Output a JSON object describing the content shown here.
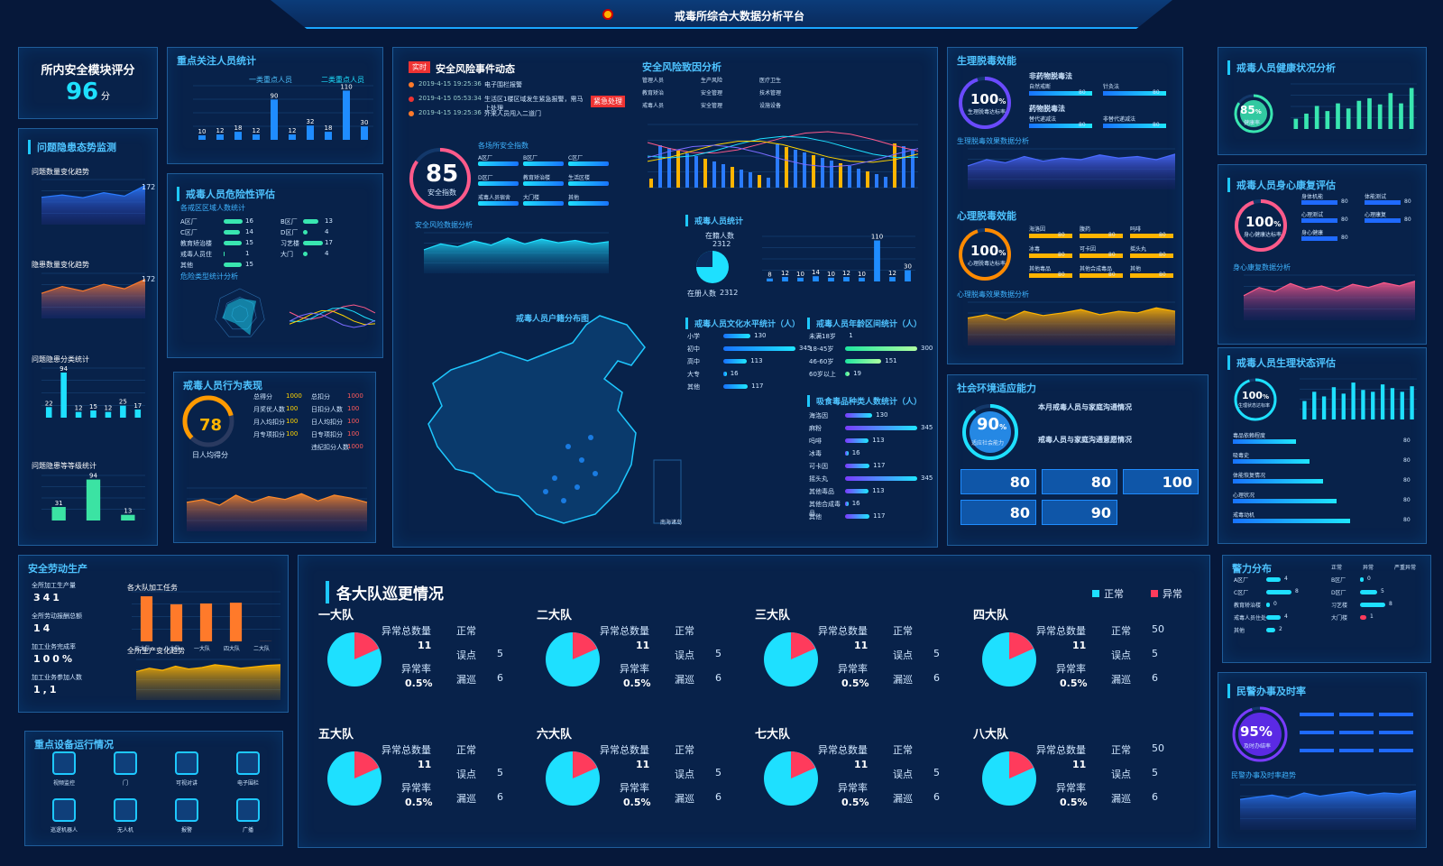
{
  "header": {
    "title": "戒毒所综合大数据分析平台"
  },
  "safety_score": {
    "title": "所内安全模块评分",
    "value": "96",
    "unit": "分"
  },
  "hazard_monitor": {
    "title": "问题隐患态势监测",
    "c1": {
      "title": "问题数量变化趋势",
      "peak": "172",
      "months": [
        "1月",
        "2月",
        "3月",
        "4月",
        "5月",
        "6月"
      ],
      "values": [
        120,
        130,
        118,
        140,
        125,
        172
      ]
    },
    "c2": {
      "title": "隐患数量变化趋势",
      "peak": "172",
      "months": [
        "1月",
        "2月",
        "3月",
        "4月",
        "5月",
        "6月"
      ],
      "values": [
        110,
        140,
        120,
        150,
        130,
        172
      ]
    },
    "c3": {
      "title": "问题隐患分类统计",
      "values": [
        22,
        94,
        12,
        15,
        12,
        25,
        17
      ]
    },
    "c4": {
      "title": "问题隐患等等级统计",
      "categories": [
        "一级",
        "二级",
        "三级"
      ],
      "values": [
        31,
        94,
        13
      ]
    }
  },
  "focus": {
    "title": "重点关注人员统计",
    "legend": [
      "一类重点人员",
      "二类重点人员"
    ],
    "values": [
      10,
      12,
      18,
      12,
      90,
      12,
      32,
      18,
      110,
      30
    ],
    "cats": [
      "自伤自残",
      "暴力倾向",
      "逃跑倾向",
      "打架",
      "精神",
      "吸毒",
      "危险倾向",
      "严重违纪",
      "艾滋病",
      "重点人员"
    ]
  },
  "risk": {
    "title": "戒毒人员危险性评估",
    "sub": "各戒区区域人数统计",
    "left": [
      {
        "k": "A区厂",
        "v": "16"
      },
      {
        "k": "C区厂",
        "v": "14"
      },
      {
        "k": "教育矫治楼",
        "v": "15"
      },
      {
        "k": "戒毒人员住",
        "v": "1"
      },
      {
        "k": "其他",
        "v": "15"
      }
    ],
    "right": [
      {
        "k": "B区厂",
        "v": "13"
      },
      {
        "k": "D区厂",
        "v": "4"
      },
      {
        "k": "习艺楼",
        "v": "17"
      },
      {
        "k": "大门",
        "v": "4"
      }
    ],
    "sub2": "危险类型统计分析",
    "radar": [
      "脱逃",
      "暴力袭警",
      "自杀自残",
      "打架",
      "行凶",
      "吸毒",
      "危险倾向"
    ],
    "months": [
      "1月",
      "2月",
      "3月"
    ]
  },
  "behavior": {
    "title": "戒毒人员行为表现",
    "gauge": "78",
    "gauge_label": "日人均得分",
    "rows": [
      {
        "k": "总得分",
        "v": "1000"
      },
      {
        "k": "月奖优人数",
        "v": "100"
      },
      {
        "k": "月入均扣分",
        "v": "100"
      },
      {
        "k": "月专项扣分",
        "v": "100"
      }
    ],
    "rows2": [
      {
        "k": "总扣分",
        "v": "1000"
      },
      {
        "k": "日扣分人数",
        "v": "100"
      },
      {
        "k": "日人均扣分",
        "v": "100"
      },
      {
        "k": "日专项扣分",
        "v": "100"
      },
      {
        "k": "违纪扣分人数",
        "v": "1000"
      }
    ],
    "months": [
      "1月",
      "2月",
      "3月",
      "4月",
      "5月",
      "6月",
      "7月",
      "8月",
      "9月",
      "10月",
      "11月",
      "12月"
    ]
  },
  "events": {
    "title": "安全风险事件动态",
    "badge": "实时",
    "items": [
      {
        "t": "2019-4-15 19:25:36",
        "d": "电子围栏报警"
      },
      {
        "t": "2019-4-15 05:53:34",
        "d": "生活区1楼区域发生紧急报警，需马上处理"
      },
      {
        "t": "2019-4-15 19:25:36",
        "d": "外来人员闯入二道门"
      }
    ],
    "tag": "紧急处理",
    "score": "85",
    "score_label": "安全指数",
    "sub": "各场所安全指数",
    "places": [
      "A区厂",
      "B区厂",
      "C区厂",
      "D区厂",
      "教育矫治楼",
      "生活区楼",
      "戒毒人员宿舍",
      "大门楼",
      "其他"
    ],
    "sub2": "安全风险数据分析",
    "months": [
      "1月",
      "2月",
      "3月",
      "4月",
      "5月",
      "6月",
      "7月",
      "8月",
      "9月",
      "10月",
      "11月",
      "12月"
    ]
  },
  "risk_cause": {
    "title": "安全风险致因分析",
    "legend": [
      "管理人员",
      "生产风险",
      "医疗卫生",
      "教育矫治",
      "安全管理",
      "技术管理",
      "戒毒人员",
      "安全管理",
      "设施设备"
    ],
    "months": [
      "1月",
      "2月",
      "3月",
      "4月",
      "5月",
      "6月"
    ]
  },
  "personnel": {
    "title": "戒毒人员统计",
    "total_label": "在籍人数",
    "total": "2312",
    "total2_label": "在册人数",
    "total2": "2312",
    "values": [
      8,
      12,
      10,
      14,
      10,
      12,
      10,
      110,
      12,
      30
    ]
  },
  "edu": {
    "title": "戒毒人员文化水平统计（人）",
    "rows": [
      {
        "k": "小学",
        "v": "130"
      },
      {
        "k": "初中",
        "v": "345"
      },
      {
        "k": "高中",
        "v": "113"
      },
      {
        "k": "大专",
        "v": "16"
      },
      {
        "k": "其他",
        "v": "117"
      }
    ]
  },
  "age": {
    "title": "戒毒人员年龄区间统计（人）",
    "rows": [
      {
        "k": "未满18岁",
        "v": "1"
      },
      {
        "k": "18-45岁",
        "v": "300"
      },
      {
        "k": "46-60岁",
        "v": "151"
      },
      {
        "k": "60岁以上",
        "v": "19"
      }
    ]
  },
  "drug": {
    "title": "吸食毒品种类人数统计（人）",
    "rows": [
      {
        "k": "海洛因",
        "v": "130"
      },
      {
        "k": "麻粉",
        "v": "345"
      },
      {
        "k": "吗啡",
        "v": "113"
      },
      {
        "k": "冰毒",
        "v": "16"
      },
      {
        "k": "可卡因",
        "v": "117"
      },
      {
        "k": "摇头丸",
        "v": "345"
      },
      {
        "k": "其他毒品",
        "v": "113"
      },
      {
        "k": "其他合成毒品",
        "v": "16"
      },
      {
        "k": "其他",
        "v": "117"
      }
    ]
  },
  "map": {
    "title": "戒毒人员户籍分布图",
    "inset": "南海诸岛"
  },
  "physio": {
    "title": "生理脱毒效能",
    "value": "100",
    "unit": "%",
    "label": "生理脱毒达标率",
    "sub1": "非药物脱毒法",
    "sub2": "药物脱毒法",
    "row": [
      "自然戒断",
      "针灸法",
      "替代递减法",
      "非替代递减法"
    ],
    "n": "80",
    "chart": "生理脱毒效果数据分析",
    "months": [
      "1月",
      "2月",
      "3月",
      "4月",
      "5月",
      "6月",
      "7月",
      "8月",
      "9月",
      "10月",
      "11月",
      "12月"
    ]
  },
  "psy": {
    "title": "心理脱毒效能",
    "value": "100",
    "unit": "%",
    "label": "心理脱毒达标率",
    "items": [
      "海洛因",
      "腹药",
      "吗啡",
      "冰毒",
      "可卡因",
      "摇头丸",
      "其他毒品",
      "其他合成毒品",
      "其他"
    ],
    "n": "80",
    "chart": "心理脱毒效果数据分析"
  },
  "health": {
    "title": "戒毒人员健康状况分析",
    "value": "85",
    "unit": "%",
    "label": "健康率",
    "values": [
      20,
      30,
      45,
      35,
      50,
      40,
      55,
      60,
      48,
      70,
      50,
      80
    ]
  },
  "rehab": {
    "title": "戒毒人员身心康复评估",
    "value": "100",
    "unit": "%",
    "label": "身心健康达标率",
    "items": [
      "身体机能",
      "体能测试",
      "心理测试",
      "心理康复",
      "身心健康"
    ],
    "n": "80",
    "chart": "身心康复数据分析"
  },
  "physio_eval": {
    "title": "戒毒人员生理状态评估",
    "value": "100",
    "unit": "%",
    "label": "生理状态达标率",
    "rows": [
      "毒品依赖程度",
      "吸毒史",
      "体能恢复情况",
      "心理状况",
      "戒毒动机"
    ],
    "n": "80"
  },
  "social": {
    "title": "社会环境适应能力",
    "value": "90",
    "unit": "%",
    "label": "适应社会能力",
    "sub1": "本月戒毒人员与家庭沟通情况",
    "sub2": "戒毒人员与家庭沟通意愿情况",
    "tiles": [
      "80",
      "80",
      "100",
      "80",
      "90"
    ],
    "n": "100"
  },
  "production": {
    "title": "安全劳动生产",
    "stats": [
      {
        "k": "全所加工生产量",
        "v": "341"
      },
      {
        "k": "全所劳动报酬总额",
        "v": "14"
      },
      {
        "k": "加工业务完成率",
        "v": "100%"
      },
      {
        "k": "加工业务参加人数",
        "v": "1,1"
      }
    ],
    "bars_title": "各大队加工任务",
    "bars": [
      {
        "k": "三大队",
        "v": "270000"
      },
      {
        "k": "八大队",
        "v": "222222"
      },
      {
        "k": "一大队",
        "v": "227000"
      },
      {
        "k": "四大队",
        "v": "231500"
      },
      {
        "k": "二大队",
        "v": "789"
      }
    ],
    "chart": "全所生产变化趋势",
    "months": [
      "7月",
      "8月",
      "9月",
      "10月",
      "11月",
      "12月"
    ]
  },
  "devices": {
    "title": "重点设备运行情况",
    "items": [
      "视频监控",
      "门",
      "可视对讲",
      "电子围栏",
      "巡逻机器人",
      "无人机",
      "报警",
      "广播"
    ]
  },
  "patrol": {
    "title": "各大队巡更情况",
    "legend_ok": "正常",
    "legend_bad": "异常",
    "labels": {
      "abn": "异常总数量",
      "normal": "正常",
      "err": "误点",
      "miss": "漏巡",
      "rate": "异常率"
    },
    "teams": [
      {
        "name": "一大队",
        "abn": "11",
        "normal": "",
        "err": "5",
        "miss": "6",
        "rate": "0.5%"
      },
      {
        "name": "二大队",
        "abn": "11",
        "normal": "",
        "err": "5",
        "miss": "6",
        "rate": "0.5%"
      },
      {
        "name": "三大队",
        "abn": "11",
        "normal": "",
        "err": "5",
        "miss": "6",
        "rate": "0.5%"
      },
      {
        "name": "四大队",
        "abn": "11",
        "normal": "50",
        "err": "5",
        "miss": "6",
        "rate": "0.5%"
      },
      {
        "name": "五大队",
        "abn": "11",
        "normal": "",
        "err": "5",
        "miss": "6",
        "rate": "0.5%"
      },
      {
        "name": "六大队",
        "abn": "11",
        "normal": "",
        "err": "5",
        "miss": "6",
        "rate": "0.5%"
      },
      {
        "name": "七大队",
        "abn": "11",
        "normal": "",
        "err": "5",
        "miss": "6",
        "rate": "0.5%"
      },
      {
        "name": "八大队",
        "abn": "11",
        "normal": "50",
        "err": "5",
        "miss": "6",
        "rate": "0.5%"
      }
    ]
  },
  "police": {
    "title": "警力分布",
    "legend": [
      "正常",
      "异常",
      "严重异常"
    ],
    "left": [
      {
        "k": "A区厂",
        "v": "4"
      },
      {
        "k": "C区厂",
        "v": "8"
      },
      {
        "k": "教育矫治楼",
        "v": "0"
      },
      {
        "k": "戒毒人员住处",
        "v": "4"
      },
      {
        "k": "其他",
        "v": "2"
      }
    ],
    "right": [
      {
        "k": "B区厂",
        "v": "0"
      },
      {
        "k": "D区厂",
        "v": "5"
      },
      {
        "k": "习艺楼",
        "v": "8"
      },
      {
        "k": "大门楼",
        "v": "1"
      }
    ]
  },
  "civil": {
    "title": "民警办事及时率",
    "value": "95%",
    "label": "及时办结率",
    "chart": "民警办事及时率趋势",
    "months": [
      "1月",
      "2月",
      "3月",
      "4月",
      "5月",
      "6月",
      "7月",
      "8月",
      "9月",
      "10月",
      "11月",
      "12月"
    ]
  }
}
